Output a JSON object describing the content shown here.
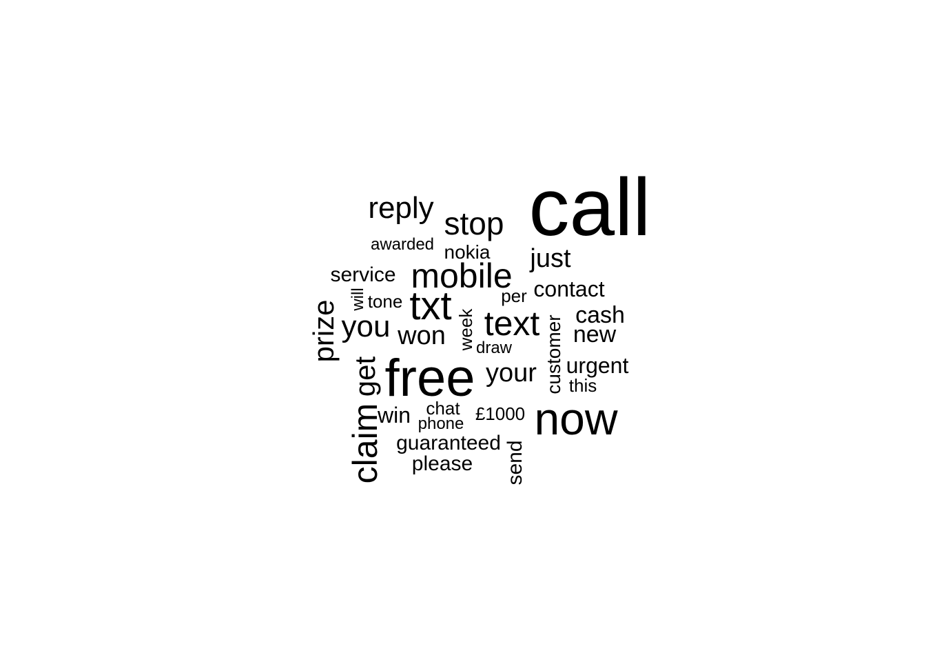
{
  "word_cloud": {
    "text_color": "#000000",
    "background_color": "#ffffff",
    "words": [
      {
        "text": "call"
      },
      {
        "text": "free"
      },
      {
        "text": "now"
      },
      {
        "text": "txt"
      },
      {
        "text": "mobile"
      },
      {
        "text": "text"
      },
      {
        "text": "claim"
      },
      {
        "text": "stop"
      },
      {
        "text": "reply"
      },
      {
        "text": "prize"
      },
      {
        "text": "you"
      },
      {
        "text": "get"
      },
      {
        "text": "your"
      },
      {
        "text": "just"
      },
      {
        "text": "won"
      },
      {
        "text": "cash"
      },
      {
        "text": "new"
      },
      {
        "text": "urgent"
      },
      {
        "text": "contact"
      },
      {
        "text": "customer"
      },
      {
        "text": "guaranteed"
      },
      {
        "text": "please"
      },
      {
        "text": "win"
      },
      {
        "text": "send"
      },
      {
        "text": "service"
      },
      {
        "text": "nokia"
      },
      {
        "text": "week"
      },
      {
        "text": "chat"
      },
      {
        "text": "£1000"
      },
      {
        "text": "tone"
      },
      {
        "text": "per"
      },
      {
        "text": "this"
      },
      {
        "text": "phone"
      },
      {
        "text": "awarded"
      },
      {
        "text": "draw"
      },
      {
        "text": "will"
      }
    ]
  }
}
